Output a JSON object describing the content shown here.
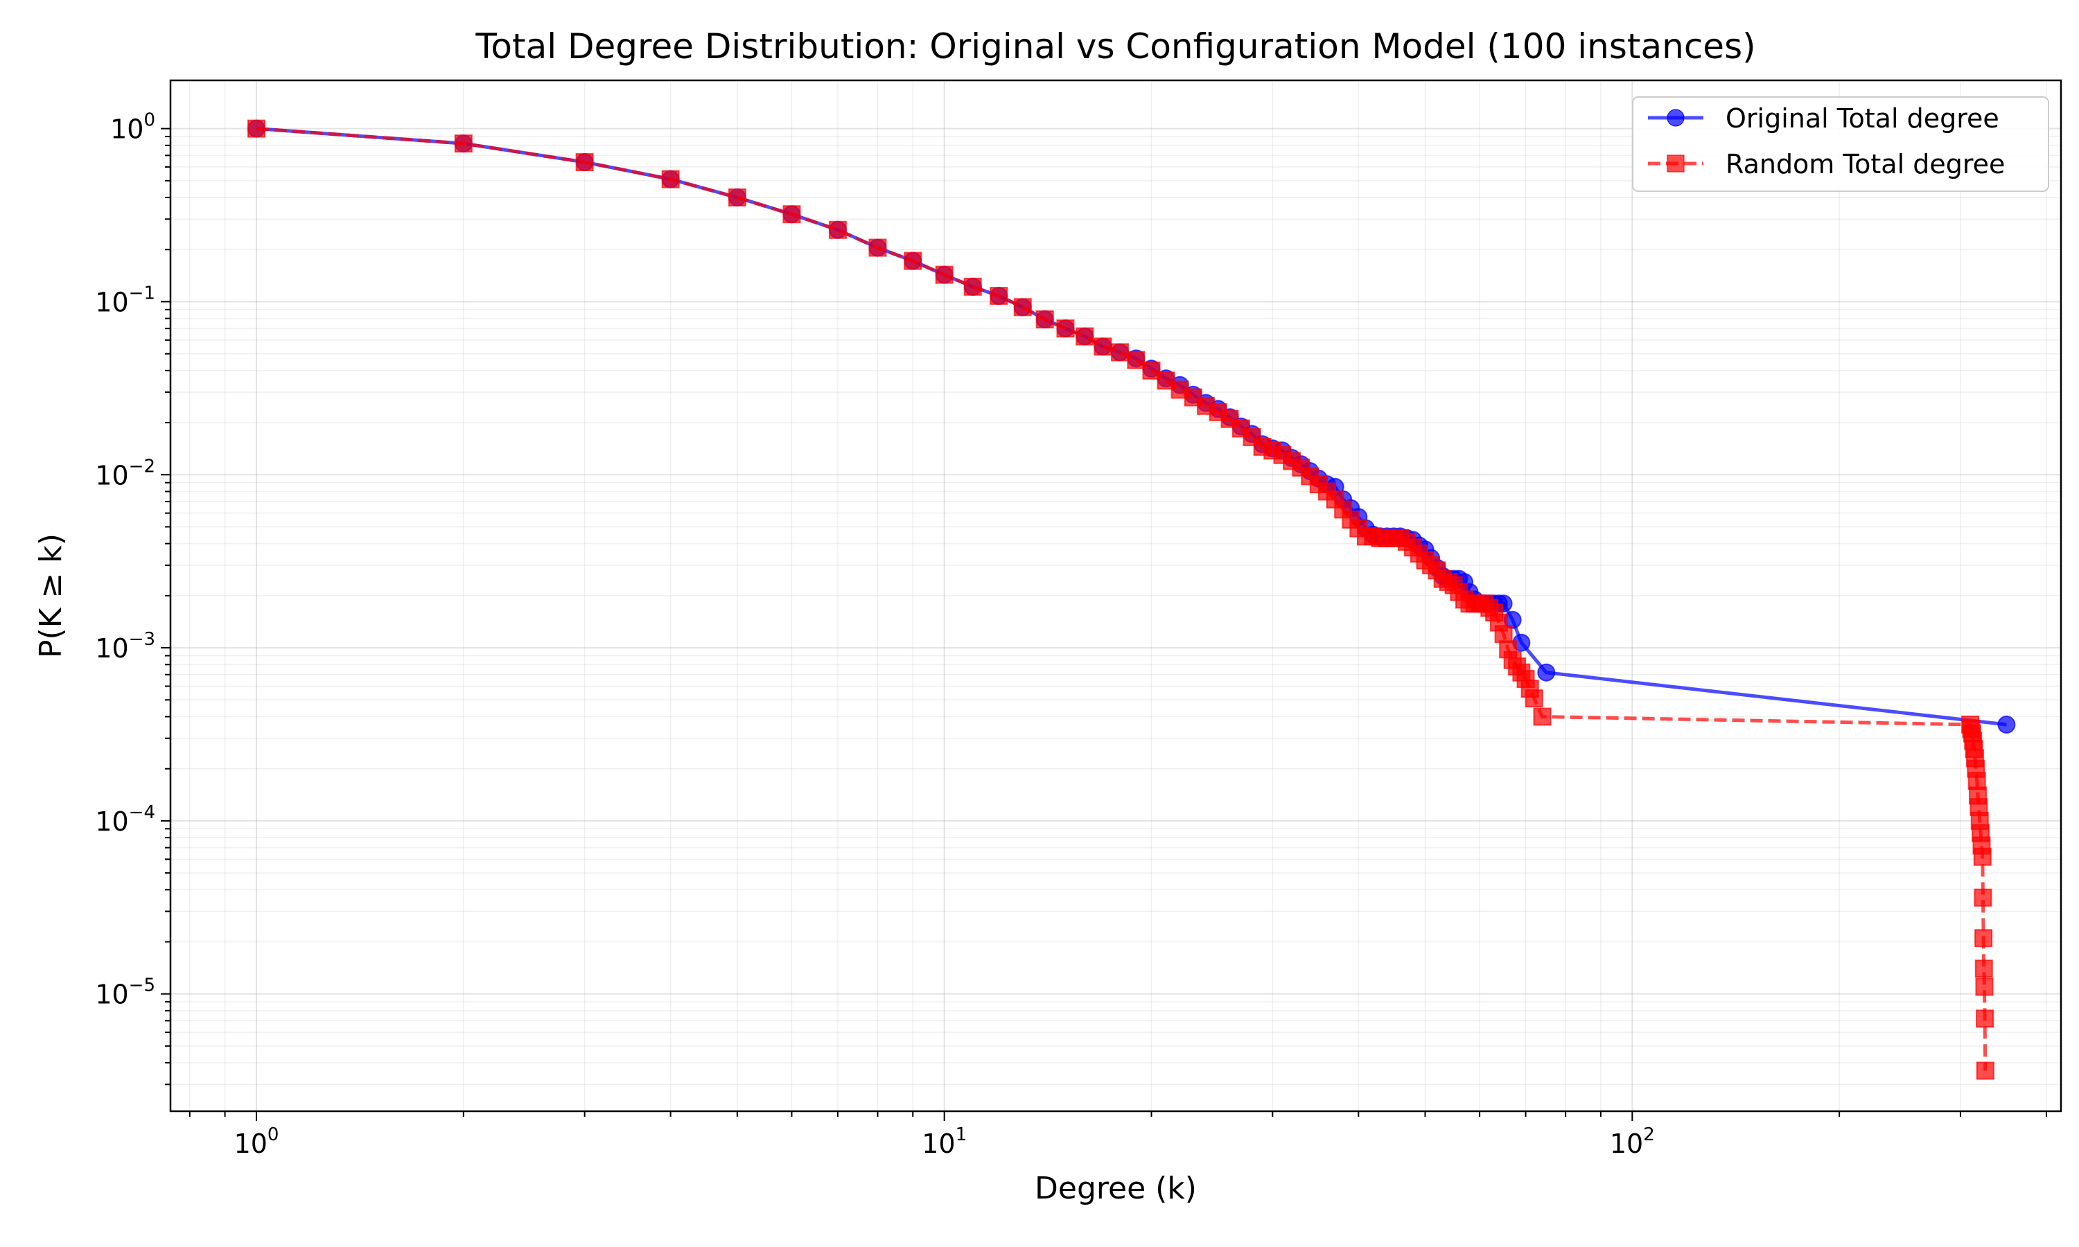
{
  "chart_data": {
    "type": "line",
    "title": "Total Degree Distribution: Original vs Configuration Model (100 instances)",
    "xlabel": "Degree (k)",
    "ylabel": "P(K ≥ k)",
    "xscale": "log",
    "yscale": "log",
    "xlim": [
      0.75,
      420
    ],
    "ylim": [
      2.1e-06,
      1.9
    ],
    "grid": true,
    "legend_position": "top-right",
    "x_ticks": [
      {
        "value": 1,
        "base": "10",
        "exp": "0"
      },
      {
        "value": 10,
        "base": "10",
        "exp": "1"
      },
      {
        "value": 100,
        "base": "10",
        "exp": "2"
      }
    ],
    "y_ticks": [
      {
        "value": 1,
        "base": "10",
        "exp": "0"
      },
      {
        "value": 0.1,
        "base": "10",
        "exp": "−1"
      },
      {
        "value": 0.01,
        "base": "10",
        "exp": "−2"
      },
      {
        "value": 0.001,
        "base": "10",
        "exp": "−3"
      },
      {
        "value": 0.0001,
        "base": "10",
        "exp": "−4"
      },
      {
        "value": 1e-05,
        "base": "10",
        "exp": "−5"
      }
    ],
    "series": [
      {
        "name": "Original Total degree",
        "color": "#0000ff",
        "marker": "circle",
        "linestyle": "solid",
        "points": [
          [
            1,
            1.0
          ],
          [
            2,
            0.82
          ],
          [
            3,
            0.64
          ],
          [
            4,
            0.51
          ],
          [
            5,
            0.4
          ],
          [
            6,
            0.32
          ],
          [
            7,
            0.26
          ],
          [
            8,
            0.205
          ],
          [
            9,
            0.172
          ],
          [
            10,
            0.143
          ],
          [
            11,
            0.122
          ],
          [
            12,
            0.108
          ],
          [
            13,
            0.093
          ],
          [
            14,
            0.079
          ],
          [
            15,
            0.07
          ],
          [
            16,
            0.063
          ],
          [
            17,
            0.055
          ],
          [
            18,
            0.051
          ],
          [
            19,
            0.047
          ],
          [
            20,
            0.041
          ],
          [
            21,
            0.036
          ],
          [
            22,
            0.033
          ],
          [
            23,
            0.029
          ],
          [
            24,
            0.026
          ],
          [
            25,
            0.024
          ],
          [
            26,
            0.0215
          ],
          [
            27,
            0.019
          ],
          [
            28,
            0.0172
          ],
          [
            29,
            0.015
          ],
          [
            30,
            0.0142
          ],
          [
            31,
            0.0138
          ],
          [
            32,
            0.0125
          ],
          [
            33,
            0.0115
          ],
          [
            34,
            0.0105
          ],
          [
            35,
            0.0095
          ],
          [
            36,
            0.0088
          ],
          [
            37,
            0.0085
          ],
          [
            38,
            0.0072
          ],
          [
            39,
            0.0064
          ],
          [
            40,
            0.0057
          ],
          [
            41,
            0.0049
          ],
          [
            42,
            0.0045
          ],
          [
            43,
            0.0044
          ],
          [
            44,
            0.0044
          ],
          [
            45,
            0.0044
          ],
          [
            46,
            0.0044
          ],
          [
            47,
            0.0043
          ],
          [
            48,
            0.0042
          ],
          [
            49,
            0.0039
          ],
          [
            50,
            0.0037
          ],
          [
            51,
            0.0033
          ],
          [
            52,
            0.0029
          ],
          [
            53,
            0.0026
          ],
          [
            54,
            0.0025
          ],
          [
            55,
            0.0025
          ],
          [
            56,
            0.0025
          ],
          [
            57,
            0.0024
          ],
          [
            58,
            0.0021
          ],
          [
            59,
            0.0019
          ],
          [
            60,
            0.0018
          ],
          [
            61,
            0.0018
          ],
          [
            62,
            0.0018
          ],
          [
            63,
            0.0018
          ],
          [
            64,
            0.0018
          ],
          [
            65,
            0.0018
          ],
          [
            67,
            0.00145
          ],
          [
            69,
            0.00107
          ],
          [
            75,
            0.00072
          ],
          [
            350,
            0.00036
          ]
        ]
      },
      {
        "name": "Random Total degree",
        "color": "#ff0000",
        "marker": "square",
        "linestyle": "dashed",
        "points": [
          [
            1,
            1.0
          ],
          [
            2,
            0.82
          ],
          [
            3,
            0.64
          ],
          [
            4,
            0.51
          ],
          [
            5,
            0.4
          ],
          [
            6,
            0.32
          ],
          [
            7,
            0.26
          ],
          [
            8,
            0.205
          ],
          [
            9,
            0.172
          ],
          [
            10,
            0.143
          ],
          [
            11,
            0.122
          ],
          [
            12,
            0.108
          ],
          [
            13,
            0.093
          ],
          [
            14,
            0.079
          ],
          [
            15,
            0.07
          ],
          [
            16,
            0.063
          ],
          [
            17,
            0.055
          ],
          [
            18,
            0.051
          ],
          [
            19,
            0.046
          ],
          [
            20,
            0.04
          ],
          [
            21,
            0.035
          ],
          [
            22,
            0.031
          ],
          [
            23,
            0.028
          ],
          [
            24,
            0.025
          ],
          [
            25,
            0.023
          ],
          [
            26,
            0.021
          ],
          [
            27,
            0.0185
          ],
          [
            28,
            0.0165
          ],
          [
            29,
            0.0145
          ],
          [
            30,
            0.0138
          ],
          [
            31,
            0.013
          ],
          [
            32,
            0.012
          ],
          [
            33,
            0.011
          ],
          [
            34,
            0.0098
          ],
          [
            35,
            0.0088
          ],
          [
            36,
            0.008
          ],
          [
            37,
            0.0072
          ],
          [
            38,
            0.0063
          ],
          [
            39,
            0.0055
          ],
          [
            40,
            0.0049
          ],
          [
            41,
            0.0044
          ],
          [
            42,
            0.0044
          ],
          [
            43,
            0.0043
          ],
          [
            44,
            0.0043
          ],
          [
            45,
            0.0043
          ],
          [
            46,
            0.0043
          ],
          [
            47,
            0.0041
          ],
          [
            48,
            0.0038
          ],
          [
            49,
            0.0035
          ],
          [
            50,
            0.0032
          ],
          [
            51,
            0.003
          ],
          [
            52,
            0.0028
          ],
          [
            53,
            0.0025
          ],
          [
            54,
            0.0024
          ],
          [
            55,
            0.0023
          ],
          [
            56,
            0.0021
          ],
          [
            57,
            0.0019
          ],
          [
            58,
            0.0018
          ],
          [
            59,
            0.0018
          ],
          [
            60,
            0.0018
          ],
          [
            61,
            0.0018
          ],
          [
            62,
            0.0017
          ],
          [
            63,
            0.0016
          ],
          [
            64,
            0.0014
          ],
          [
            65,
            0.0012
          ],
          [
            66,
            0.00098
          ],
          [
            67,
            0.00085
          ],
          [
            68,
            0.00078
          ],
          [
            69,
            0.00072
          ],
          [
            70,
            0.00066
          ],
          [
            71,
            0.00058
          ],
          [
            72,
            0.00051
          ],
          [
            74,
            0.0004
          ],
          [
            310,
            0.00036
          ],
          [
            311,
            0.00034
          ],
          [
            312,
            0.00032
          ],
          [
            313,
            0.00029
          ],
          [
            314,
            0.00026
          ],
          [
            315,
            0.00023
          ],
          [
            316,
            0.0002
          ],
          [
            317,
            0.00017
          ],
          [
            318,
            0.00014
          ],
          [
            319,
            0.00012
          ],
          [
            320,
            0.0001
          ],
          [
            321,
            8.5e-05
          ],
          [
            322,
            7.2e-05
          ],
          [
            323,
            6.2e-05
          ],
          [
            323.5,
            3.6e-05
          ],
          [
            324,
            2.1e-05
          ],
          [
            324.5,
            1.4e-05
          ],
          [
            325,
            1.1e-05
          ],
          [
            325.5,
            7.2e-06
          ],
          [
            326,
            3.6e-06
          ]
        ]
      }
    ]
  }
}
